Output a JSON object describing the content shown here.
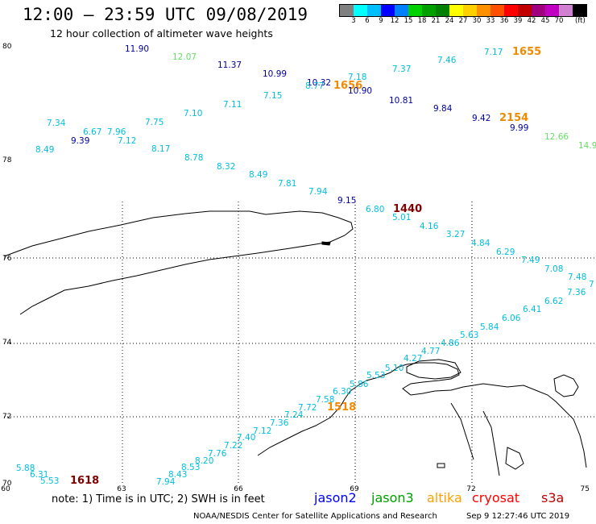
{
  "header": {
    "title": "12:00 — 23:59 UTC 09/08/2019",
    "subtitle": "12 hour collection of altimeter wave heights"
  },
  "colorbar": {
    "unit": "(ft)",
    "colors": [
      "#808080",
      "#00ffff",
      "#00bfff",
      "#0000ff",
      "#0080ff",
      "#00d000",
      "#00a000",
      "#008000",
      "#ffff00",
      "#ffd000",
      "#ff9000",
      "#ff5000",
      "#ff0000",
      "#c00000",
      "#a00080",
      "#c000c0",
      "#d080d0",
      "#000000"
    ],
    "labels": [
      "3",
      "6",
      "9",
      "12",
      "15",
      "18",
      "21",
      "24",
      "27",
      "30",
      "33",
      "36",
      "39",
      "42",
      "45",
      "70"
    ]
  },
  "map": {
    "lon_labels": [
      "60",
      "63",
      "66",
      "69",
      "72",
      "75"
    ],
    "lat_labels": [
      "80",
      "78",
      "76",
      "74",
      "72",
      "70"
    ],
    "colors": {
      "cyan": "#00bfe0",
      "navy": "#0000a0",
      "green": "#66dd66",
      "orange": "#f08a00",
      "darkred": "#800000"
    },
    "obs": [
      {
        "t": "11.90",
        "c": "navy"
      },
      {
        "t": "12.07",
        "c": "green"
      },
      {
        "t": "11.37",
        "c": "navy"
      },
      {
        "t": "10.99",
        "c": "navy"
      },
      {
        "t": "10.32",
        "c": "navy"
      },
      {
        "t": "8.77",
        "c": "cyan"
      },
      {
        "t": "1656",
        "c": "orange"
      },
      {
        "t": "7.18",
        "c": "cyan"
      },
      {
        "t": "10.90",
        "c": "navy"
      },
      {
        "t": "7.37",
        "c": "cyan"
      },
      {
        "t": "7.46",
        "c": "cyan"
      },
      {
        "t": "7.17",
        "c": "cyan"
      },
      {
        "t": "1655",
        "c": "orange"
      },
      {
        "t": "7.15",
        "c": "cyan"
      },
      {
        "t": "7.11",
        "c": "cyan"
      },
      {
        "t": "10.81",
        "c": "navy"
      },
      {
        "t": "9.84",
        "c": "navy"
      },
      {
        "t": "9.42",
        "c": "navy"
      },
      {
        "t": "2154",
        "c": "orange"
      },
      {
        "t": "9.99",
        "c": "navy"
      },
      {
        "t": "12.66",
        "c": "green"
      },
      {
        "t": "14.9",
        "c": "green"
      },
      {
        "t": "7.10",
        "c": "cyan"
      },
      {
        "t": "7.34",
        "c": "cyan"
      },
      {
        "t": "6.67",
        "c": "cyan"
      },
      {
        "t": "7.96",
        "c": "cyan"
      },
      {
        "t": "7.75",
        "c": "cyan"
      },
      {
        "t": "9.39",
        "c": "navy"
      },
      {
        "t": "7.12",
        "c": "cyan"
      },
      {
        "t": "8.49",
        "c": "cyan"
      },
      {
        "t": "8.17",
        "c": "cyan"
      },
      {
        "t": "8.78",
        "c": "cyan"
      },
      {
        "t": "8.32",
        "c": "cyan"
      },
      {
        "t": "8.49",
        "c": "cyan"
      },
      {
        "t": "7.81",
        "c": "cyan"
      },
      {
        "t": "7.94",
        "c": "cyan"
      },
      {
        "t": "9.15",
        "c": "navy"
      },
      {
        "t": "6.80",
        "c": "cyan"
      },
      {
        "t": "1440",
        "c": "darkred"
      },
      {
        "t": "5.01",
        "c": "cyan"
      },
      {
        "t": "4.16",
        "c": "cyan"
      },
      {
        "t": "3.27",
        "c": "cyan"
      },
      {
        "t": "4.84",
        "c": "cyan"
      },
      {
        "t": "6.29",
        "c": "cyan"
      },
      {
        "t": "7.49",
        "c": "cyan"
      },
      {
        "t": "7.08",
        "c": "cyan"
      },
      {
        "t": "7.48",
        "c": "cyan"
      },
      {
        "t": "7.36",
        "c": "cyan"
      },
      {
        "t": "7",
        "c": "cyan"
      },
      {
        "t": "6.62",
        "c": "cyan"
      },
      {
        "t": "6.41",
        "c": "cyan"
      },
      {
        "t": "6.06",
        "c": "cyan"
      },
      {
        "t": "5.84",
        "c": "cyan"
      },
      {
        "t": "5.63",
        "c": "cyan"
      },
      {
        "t": "4.86",
        "c": "cyan"
      },
      {
        "t": "4.77",
        "c": "cyan"
      },
      {
        "t": "4.27",
        "c": "cyan"
      },
      {
        "t": "5.10",
        "c": "cyan"
      },
      {
        "t": "5.53",
        "c": "cyan"
      },
      {
        "t": "5.86",
        "c": "cyan"
      },
      {
        "t": "6.30",
        "c": "cyan"
      },
      {
        "t": "7.58",
        "c": "cyan"
      },
      {
        "t": "1518",
        "c": "orange"
      },
      {
        "t": "7.72",
        "c": "cyan"
      },
      {
        "t": "7.24",
        "c": "cyan"
      },
      {
        "t": "7.36",
        "c": "cyan"
      },
      {
        "t": "7.12",
        "c": "cyan"
      },
      {
        "t": "7.40",
        "c": "cyan"
      },
      {
        "t": "7.22",
        "c": "cyan"
      },
      {
        "t": "7.76",
        "c": "cyan"
      },
      {
        "t": "8.20",
        "c": "cyan"
      },
      {
        "t": "8.53",
        "c": "cyan"
      },
      {
        "t": "8.43",
        "c": "cyan"
      },
      {
        "t": "7.94",
        "c": "cyan"
      },
      {
        "t": "5.88",
        "c": "cyan"
      },
      {
        "t": "6.31",
        "c": "cyan"
      },
      {
        "t": "5.53",
        "c": "cyan"
      },
      {
        "t": "1618",
        "c": "darkred"
      }
    ]
  },
  "footer": {
    "note": "note: 1) Time is in UTC; 2) SWH is in feet",
    "legend": [
      {
        "label": "jason2",
        "color": "#0000ff"
      },
      {
        "label": "jason3",
        "color": "#00a000"
      },
      {
        "label": "altika",
        "color": "#ffa000"
      },
      {
        "label": "cryosat",
        "color": "#ff0000"
      },
      {
        "label": "s3a",
        "color": "#c00000"
      }
    ],
    "credit": "NOAA/NESDIS Center for Satellite Applications and Research",
    "timestamp": "Sep  9 12:27:46 UTC 2019"
  }
}
